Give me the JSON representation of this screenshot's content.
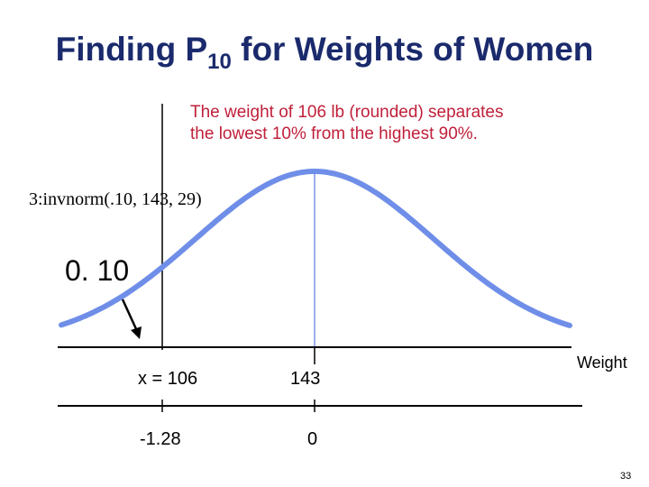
{
  "title": {
    "main_before": "Finding P",
    "subscript": "10",
    "main_after": " for Weights of Women"
  },
  "note": {
    "line1": "The weight of 106 lb (rounded) separates",
    "line2": "the lowest 10% from the highest 90%."
  },
  "calculator_command": "3:invnorm(.10, 143, 29)",
  "area_label": "0. 10",
  "axis": {
    "x_label": "x = 106",
    "mean_label": "143",
    "unit_label": "Weight",
    "z_label": "-1.28",
    "z_mean_label": "0"
  },
  "distribution": {
    "type": "normal",
    "mean": 143,
    "sd": 29,
    "cutoff_x": 106,
    "cutoff_z": -1.28,
    "left_area": 0.1
  },
  "colors": {
    "curve": "#6f8ee8",
    "title": "#1a2a6c",
    "note": "#c0203a"
  },
  "slide_number": "33"
}
